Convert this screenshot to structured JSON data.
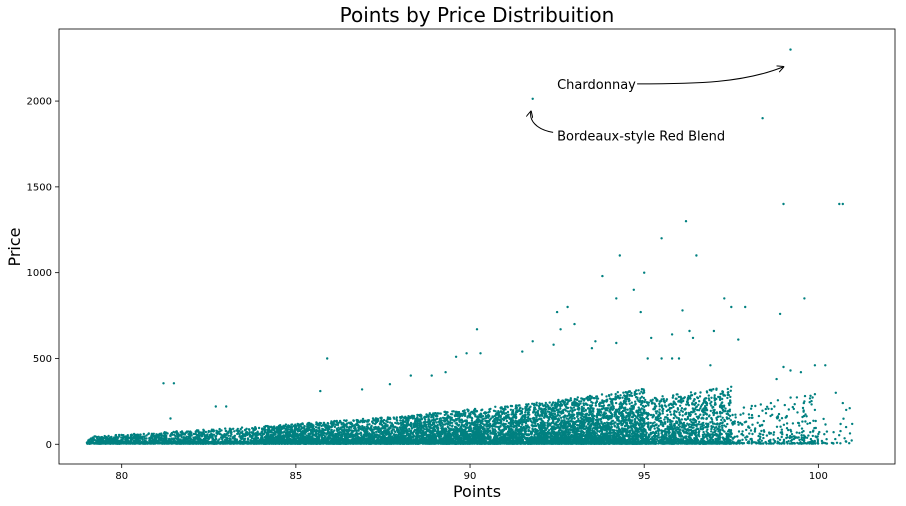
{
  "chart_data": {
    "type": "scatter",
    "title": "Points by Price Distribuition",
    "xlabel": "Points",
    "ylabel": "Price",
    "xlim": [
      78.2,
      102.2
    ],
    "ylim": [
      -115,
      2420
    ],
    "x_ticks": [
      80,
      85,
      90,
      95,
      100
    ],
    "y_ticks": [
      0,
      500,
      1000,
      1500,
      2000
    ],
    "grid": false,
    "marker_color": "#008080",
    "series": [
      {
        "points": [
          [
            91.8,
            2013
          ],
          [
            99.2,
            2300
          ],
          [
            98.4,
            1900
          ],
          [
            99.0,
            1400
          ],
          [
            100.6,
            1400
          ],
          [
            100.7,
            1400
          ],
          [
            96.2,
            1300
          ],
          [
            95.5,
            1200
          ],
          [
            94.3,
            1100
          ],
          [
            96.5,
            1100
          ],
          [
            93.8,
            980
          ],
          [
            95.0,
            1000
          ],
          [
            94.7,
            900
          ],
          [
            97.3,
            850
          ],
          [
            99.6,
            850
          ],
          [
            94.2,
            850
          ],
          [
            98.9,
            760
          ],
          [
            97.5,
            800
          ],
          [
            97.9,
            800
          ],
          [
            92.8,
            800
          ],
          [
            94.9,
            770
          ],
          [
            96.1,
            780
          ],
          [
            92.5,
            770
          ],
          [
            90.2,
            670
          ],
          [
            92.6,
            670
          ],
          [
            93.0,
            700
          ],
          [
            96.3,
            660
          ],
          [
            97.0,
            660
          ],
          [
            95.8,
            640
          ],
          [
            96.4,
            620
          ],
          [
            97.7,
            610
          ],
          [
            91.8,
            600
          ],
          [
            93.6,
            600
          ],
          [
            95.2,
            620
          ],
          [
            94.2,
            590
          ],
          [
            92.4,
            580
          ],
          [
            93.5,
            560
          ],
          [
            91.5,
            540
          ],
          [
            89.9,
            530
          ],
          [
            90.3,
            530
          ],
          [
            89.6,
            510
          ],
          [
            85.9,
            500
          ],
          [
            95.1,
            500
          ],
          [
            95.5,
            500
          ],
          [
            95.8,
            500
          ],
          [
            96.0,
            500
          ],
          [
            99.0,
            450
          ],
          [
            99.2,
            430
          ],
          [
            99.5,
            420
          ],
          [
            99.9,
            460
          ],
          [
            100.2,
            460
          ],
          [
            100.5,
            300
          ],
          [
            100.8,
            200
          ],
          [
            100.9,
            210
          ],
          [
            99.9,
            200
          ],
          [
            99.6,
            250
          ],
          [
            100.7,
            240
          ],
          [
            100.0,
            60
          ],
          [
            98.8,
            380
          ],
          [
            81.2,
            355
          ],
          [
            81.5,
            355
          ],
          [
            85.7,
            310
          ],
          [
            86.9,
            320
          ],
          [
            83.0,
            220
          ],
          [
            82.7,
            220
          ],
          [
            81.4,
            150
          ],
          [
            88.3,
            400
          ],
          [
            88.9,
            400
          ],
          [
            87.7,
            350
          ],
          [
            89.3,
            420
          ],
          [
            96.9,
            460
          ]
        ],
        "clusters": [
          {
            "x": [
              79.0,
              84.0
            ],
            "y_max": [
              40,
              100
            ],
            "n": 1500
          },
          {
            "x": [
              84.0,
              88.0
            ],
            "y_max": [
              100,
              160
            ],
            "n": 2600
          },
          {
            "x": [
              88.0,
              92.0
            ],
            "y_max": [
              160,
              240
            ],
            "n": 3200
          },
          {
            "x": [
              92.0,
              95.0
            ],
            "y_max": [
              240,
              320
            ],
            "n": 3000
          },
          {
            "x": [
              95.0,
              97.5
            ],
            "y_max": [
              260,
              340
            ],
            "n": 1400
          },
          {
            "x": [
              97.5,
              100.0
            ],
            "y_max": [
              200,
              300
            ],
            "n": 320
          },
          {
            "x": [
              100.0,
              101.0
            ],
            "y_max": [
              150,
              150
            ],
            "n": 30
          }
        ]
      }
    ],
    "annotations": [
      {
        "text": "Chardonnay",
        "text_at": [
          92.5,
          2100
        ],
        "arrow_to": [
          99.0,
          2200
        ]
      },
      {
        "text": "Bordeaux-style Red Blend",
        "text_at": [
          92.5,
          1800
        ],
        "arrow_to": [
          91.75,
          1940
        ]
      }
    ]
  }
}
